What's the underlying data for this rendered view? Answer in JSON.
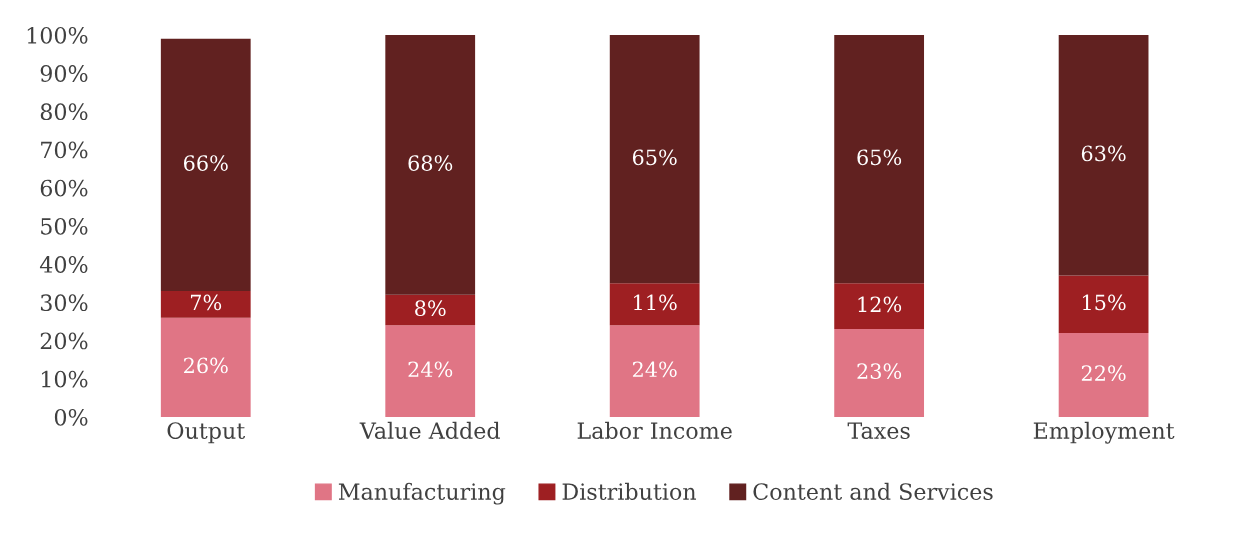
{
  "chart_data": {
    "type": "bar",
    "stacked": true,
    "legend": "bottom",
    "grid": false,
    "categories": [
      "Output",
      "Value Added",
      "Labor Income",
      "Taxes",
      "Employment"
    ],
    "series": [
      {
        "name": "Manufacturing",
        "color": "#e07585",
        "values": [
          26,
          24,
          24,
          23,
          22
        ],
        "value_labels": [
          "26%",
          "24%",
          "24%",
          "23%",
          "22%"
        ]
      },
      {
        "name": "Distribution",
        "color": "#9e1f22",
        "values": [
          7,
          8,
          11,
          12,
          15
        ],
        "value_labels": [
          "7%",
          "8%",
          "11%",
          "12%",
          "15%"
        ]
      },
      {
        "name": "Content and Services",
        "color": "#612120",
        "values": [
          66,
          68,
          65,
          65,
          63
        ],
        "value_labels": [
          "66%",
          "68%",
          "65%",
          "65%",
          "63%"
        ]
      }
    ],
    "ylim": [
      0,
      100
    ],
    "yticks": [
      {
        "value": 0,
        "label": "0%"
      },
      {
        "value": 10,
        "label": "10%"
      },
      {
        "value": 20,
        "label": "20%"
      },
      {
        "value": 30,
        "label": "30%"
      },
      {
        "value": 40,
        "label": "40%"
      },
      {
        "value": 50,
        "label": "50%"
      },
      {
        "value": 60,
        "label": "60%"
      },
      {
        "value": 70,
        "label": "70%"
      },
      {
        "value": 80,
        "label": "80%"
      },
      {
        "value": 90,
        "label": "90%"
      },
      {
        "value": 100,
        "label": "100%"
      }
    ]
  }
}
